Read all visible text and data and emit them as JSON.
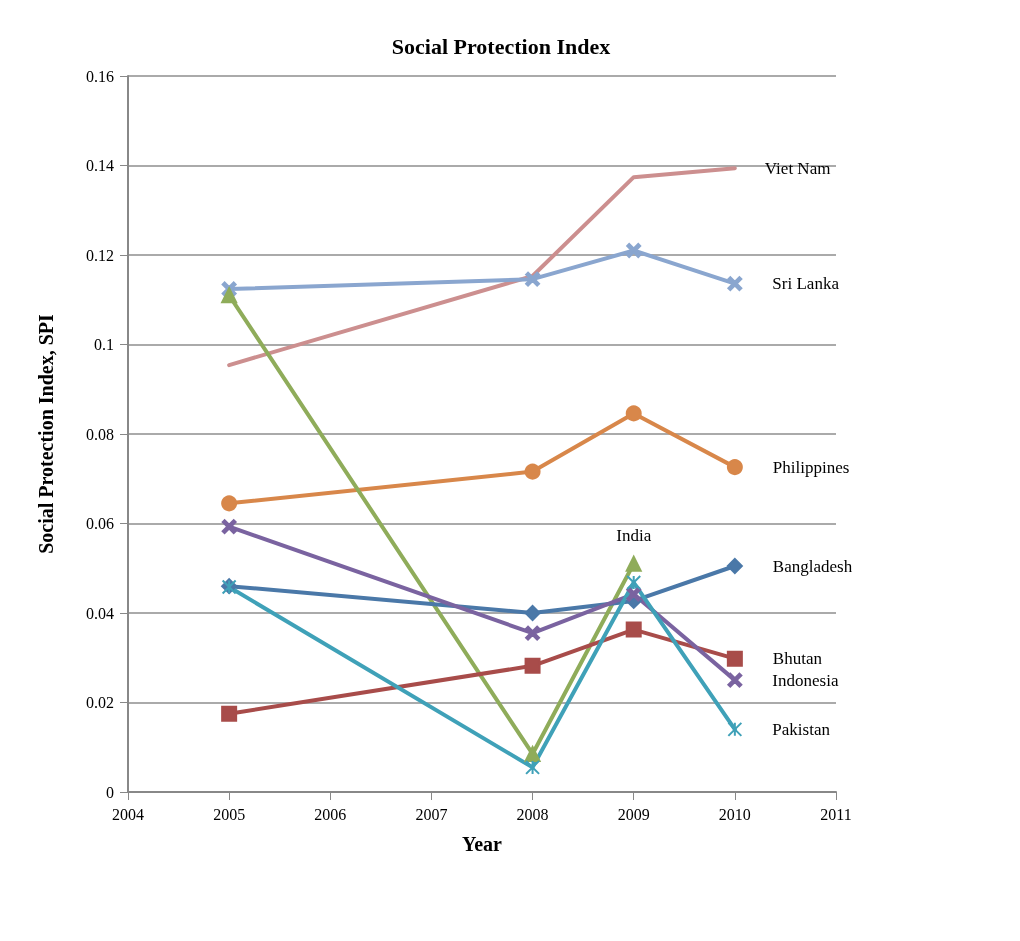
{
  "chart_data": {
    "type": "line",
    "title": "Social Protection Index",
    "xlabel": "Year",
    "ylabel": "Social Protection Index, SPI",
    "x": [
      2005,
      2008,
      2009,
      2010
    ],
    "series": [
      {
        "name": "Viet Nam",
        "color": "#cc8f8f",
        "marker": "none",
        "values": [
          0.0954,
          0.1153,
          0.1374,
          0.1394
        ]
      },
      {
        "name": "Sri Lanka",
        "color": "#8aa6cf",
        "marker": "cross",
        "values": [
          0.1124,
          0.1146,
          0.121,
          0.1136
        ]
      },
      {
        "name": "Philippines",
        "color": "#d8874a",
        "marker": "circle",
        "values": [
          0.0645,
          0.0716,
          0.0846,
          0.0726
        ]
      },
      {
        "name": "India",
        "color": "#8fac5a",
        "marker": "triangle",
        "values": [
          0.111,
          0.0085,
          0.051,
          null
        ]
      },
      {
        "name": "Bangladesh",
        "color": "#4a78a8",
        "marker": "diamond",
        "values": [
          0.046,
          0.04,
          0.0427,
          0.0505
        ]
      },
      {
        "name": "Bhutan",
        "color": "#a84c4a",
        "marker": "square",
        "values": [
          0.0175,
          0.0282,
          0.0363,
          0.0298
        ]
      },
      {
        "name": "Indonesia",
        "color": "#7a63a0",
        "marker": "cross",
        "values": [
          0.0593,
          0.0355,
          0.0442,
          0.025
        ]
      },
      {
        "name": "Pakistan",
        "color": "#3fa1b8",
        "marker": "star",
        "values": [
          0.0458,
          0.0055,
          0.0468,
          0.014
        ]
      }
    ],
    "xlim": [
      2004,
      2011
    ],
    "xticks": [
      2004,
      2005,
      2006,
      2007,
      2008,
      2009,
      2010,
      2011
    ],
    "ylim": [
      0,
      0.16
    ],
    "yticks": [
      0,
      0.02,
      0.04,
      0.06,
      0.08,
      0.1,
      0.12,
      0.14,
      0.16
    ],
    "grid": "y",
    "legend": false
  }
}
